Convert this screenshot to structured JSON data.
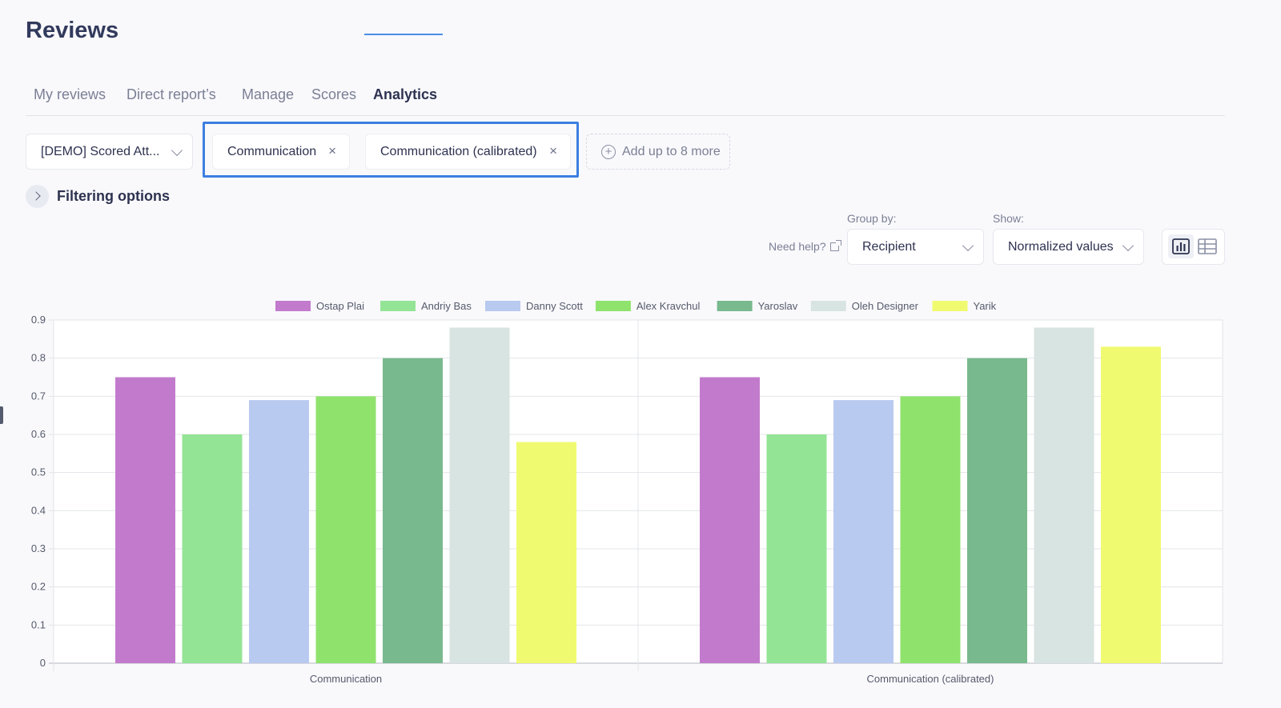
{
  "page": {
    "title": "Reviews"
  },
  "tabs": [
    {
      "label": "My reviews",
      "active": false
    },
    {
      "label": "Direct report’s",
      "active": false
    },
    {
      "label": "Manage",
      "active": false
    },
    {
      "label": "Scores",
      "active": false
    },
    {
      "label": "Analytics",
      "active": true
    }
  ],
  "filters": {
    "survey_value": "[DEMO] Scored Att...",
    "chips": [
      {
        "label": "Communication",
        "remove_icon": "×"
      },
      {
        "label": "Communication (calibrated)",
        "remove_icon": "×"
      }
    ],
    "add_more_label": "Add up to 8 more",
    "filtering_options_label": "Filtering options"
  },
  "controls": {
    "need_help_label": "Need help?",
    "group_by_label": "Group by:",
    "group_by_value": "Recipient",
    "show_label": "Show:",
    "show_value": "Normalized values",
    "view_modes": [
      "bar-chart-icon",
      "table-icon"
    ],
    "active_view": "bar-chart-icon"
  },
  "colors": {
    "accent": "#4a8ee8",
    "highlight_frame": "#3c7fe0"
  },
  "chart_data": {
    "type": "bar",
    "categories": [
      "Communication",
      "Communication (calibrated)"
    ],
    "series": [
      {
        "name": "Ostap Plai",
        "color": "#c27bcc",
        "values": [
          0.75,
          0.75
        ]
      },
      {
        "name": "Andriy Bas",
        "color": "#94e496",
        "values": [
          0.6,
          0.6
        ]
      },
      {
        "name": "Danny Scott",
        "color": "#b9caf0",
        "values": [
          0.69,
          0.69
        ]
      },
      {
        "name": "Alex Kravchul",
        "color": "#8fe36d",
        "values": [
          0.7,
          0.7
        ]
      },
      {
        "name": "Yaroslav",
        "color": "#79b98e",
        "values": [
          0.8,
          0.8
        ]
      },
      {
        "name": "Oleh Designer",
        "color": "#d7e4e2",
        "values": [
          0.88,
          0.88
        ]
      },
      {
        "name": "Yarik",
        "color": "#f0fa70",
        "values": [
          0.58,
          0.83
        ]
      }
    ],
    "ylim": [
      0,
      0.9
    ],
    "yticks": [
      "0",
      "0.1",
      "0.2",
      "0.3",
      "0.4",
      "0.5",
      "0.6",
      "0.7",
      "0.8",
      "0.9"
    ],
    "grid": true,
    "legend_position": "top-center"
  }
}
